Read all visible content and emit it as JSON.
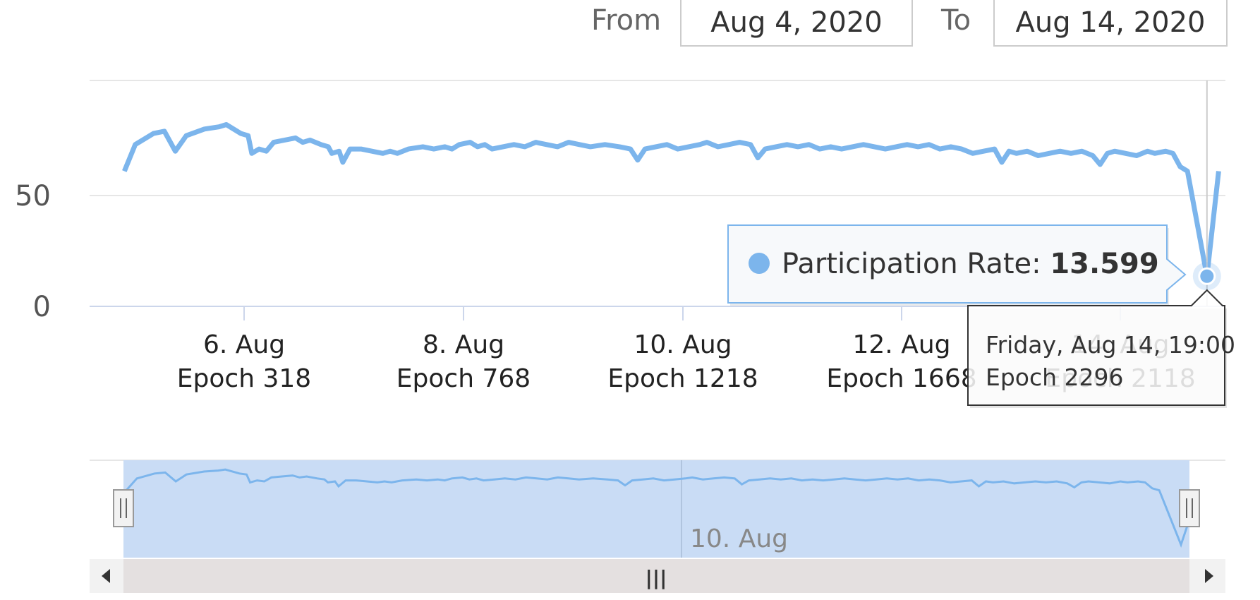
{
  "range_selector": {
    "from_label": "From",
    "from_value": "Aug 4, 2020",
    "to_label": "To",
    "to_value": "Aug 14, 2020"
  },
  "navigator": {
    "x_label": "10. Aug",
    "scrollbar_grip": "|||"
  },
  "tooltip": {
    "series_name": "Participation Rate",
    "value": "13.599",
    "date": "Friday, Aug 14, 19:00",
    "epoch": "Epoch 2296"
  },
  "colors": {
    "series": "#7cb5ec",
    "navigator_mask": "#c9dcf5",
    "grid": "#e6e6e6",
    "axis": "#ccd6eb",
    "scrollbar_track": "#e6e6e6",
    "handle": "#f2f2f2"
  },
  "chart_data": {
    "type": "line",
    "series": [
      {
        "name": "Participation Rate",
        "values": [
          [
            0,
            61
          ],
          [
            3,
            73
          ],
          [
            8,
            78
          ],
          [
            11,
            79
          ],
          [
            14,
            70
          ],
          [
            17,
            77
          ],
          [
            22,
            80
          ],
          [
            26,
            81
          ],
          [
            28,
            82
          ],
          [
            32,
            78
          ],
          [
            34,
            77
          ],
          [
            35,
            69
          ],
          [
            37,
            71
          ],
          [
            39,
            70
          ],
          [
            41,
            74
          ],
          [
            44,
            75
          ],
          [
            47,
            76
          ],
          [
            49,
            74
          ],
          [
            51,
            75
          ],
          [
            54,
            73
          ],
          [
            56,
            72
          ],
          [
            57,
            69
          ],
          [
            59,
            70
          ],
          [
            60,
            65
          ],
          [
            62,
            71
          ],
          [
            65,
            71
          ],
          [
            68,
            70
          ],
          [
            71,
            69
          ],
          [
            73,
            70
          ],
          [
            75,
            69
          ],
          [
            78,
            71
          ],
          [
            82,
            72
          ],
          [
            85,
            71
          ],
          [
            88,
            72
          ],
          [
            90,
            71
          ],
          [
            92,
            73
          ],
          [
            95,
            74
          ],
          [
            97,
            72
          ],
          [
            99,
            73
          ],
          [
            101,
            71
          ],
          [
            104,
            72
          ],
          [
            107,
            73
          ],
          [
            110,
            72
          ],
          [
            113,
            74
          ],
          [
            116,
            73
          ],
          [
            119,
            72
          ],
          [
            122,
            74
          ],
          [
            125,
            73
          ],
          [
            128,
            72
          ],
          [
            132,
            73
          ],
          [
            136,
            72
          ],
          [
            139,
            71
          ],
          [
            141,
            66
          ],
          [
            143,
            71
          ],
          [
            146,
            72
          ],
          [
            149,
            73
          ],
          [
            152,
            71
          ],
          [
            155,
            72
          ],
          [
            158,
            73
          ],
          [
            160,
            74
          ],
          [
            163,
            72
          ],
          [
            166,
            73
          ],
          [
            169,
            74
          ],
          [
            172,
            73
          ],
          [
            174,
            67
          ],
          [
            176,
            71
          ],
          [
            179,
            72
          ],
          [
            182,
            73
          ],
          [
            185,
            72
          ],
          [
            188,
            73
          ],
          [
            191,
            71
          ],
          [
            194,
            72
          ],
          [
            197,
            71
          ],
          [
            200,
            72
          ],
          [
            203,
            73
          ],
          [
            206,
            72
          ],
          [
            209,
            71
          ],
          [
            212,
            72
          ],
          [
            215,
            73
          ],
          [
            218,
            72
          ],
          [
            221,
            73
          ],
          [
            224,
            71
          ],
          [
            227,
            72
          ],
          [
            230,
            71
          ],
          [
            233,
            69
          ],
          [
            236,
            70
          ],
          [
            239,
            71
          ],
          [
            241,
            65
          ],
          [
            243,
            70
          ],
          [
            245,
            69
          ],
          [
            248,
            70
          ],
          [
            251,
            68
          ],
          [
            254,
            69
          ],
          [
            257,
            70
          ],
          [
            260,
            69
          ],
          [
            263,
            70
          ],
          [
            266,
            68
          ],
          [
            268,
            64
          ],
          [
            270,
            69
          ],
          [
            272,
            70
          ],
          [
            275,
            69
          ],
          [
            278,
            68
          ],
          [
            281,
            70
          ],
          [
            283,
            69
          ],
          [
            286,
            70
          ],
          [
            288,
            69
          ],
          [
            290,
            63
          ],
          [
            292,
            61
          ]
        ]
      }
    ],
    "tooltip_point": {
      "epoch": 2296,
      "date": "Friday, Aug 14, 19:00",
      "value": 13.599
    },
    "x_ticks": [
      {
        "date": "6. Aug",
        "epoch": "Epoch 318"
      },
      {
        "date": "8. Aug",
        "epoch": "Epoch 768"
      },
      {
        "date": "10. Aug",
        "epoch": "Epoch 1218"
      },
      {
        "date": "12. Aug",
        "epoch": "Epoch 1668"
      },
      {
        "date": "14. Aug",
        "epoch": "Epoch 2118"
      }
    ],
    "y_ticks": [
      "0",
      "50"
    ],
    "xlabel": "",
    "ylabel": "",
    "grid": true,
    "legend": "none"
  }
}
